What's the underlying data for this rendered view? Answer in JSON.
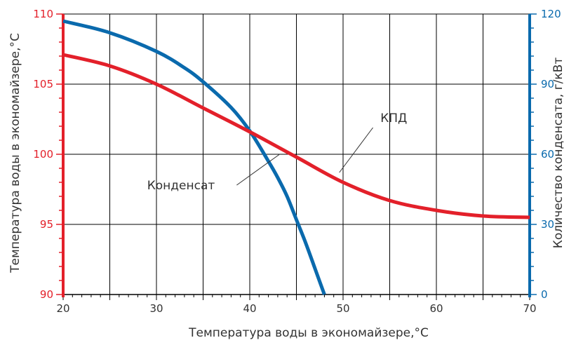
{
  "colors": {
    "left_axis": "#e3202a",
    "right_axis": "#0a6aad",
    "kpd_series": "#e3202a",
    "condensate_series": "#0a6aad",
    "grid": "#000000",
    "text": "#333333"
  },
  "chart_data": {
    "type": "line",
    "title": "",
    "xlabel": "Температура воды в экономайзере,°С",
    "ylabel_left": "Температура воды в экономайзере,°С",
    "ylabel_right": "Количество конденсата, г/кВт",
    "xlim": [
      20,
      70
    ],
    "ylim_left": [
      90,
      110
    ],
    "ylim_right": [
      0,
      120
    ],
    "x_ticks": [
      "20",
      "30",
      "40",
      "50",
      "60",
      "70"
    ],
    "y_left_ticks": [
      "90",
      "95",
      "100",
      "105",
      "110"
    ],
    "y_right_ticks": [
      "0",
      "30",
      "60",
      "90",
      "120"
    ],
    "grid": true,
    "series": [
      {
        "axis": "left",
        "x": [
          20,
          25,
          30,
          35,
          40,
          45,
          50,
          55,
          60,
          65,
          70
        ],
        "y": [
          107.1,
          106.3,
          105.0,
          103.3,
          101.6,
          99.8,
          98.0,
          96.7,
          96.0,
          95.6,
          95.5
        ]
      },
      {
        "axis": "right",
        "x": [
          20,
          25,
          30,
          33,
          35,
          38,
          40,
          42,
          43,
          44,
          45,
          46,
          47,
          48
        ],
        "y": [
          117,
          112,
          104,
          97,
          91,
          80,
          70,
          57,
          50,
          42,
          32,
          22,
          11,
          0
        ]
      }
    ],
    "annotations": [
      {
        "text": "КПД",
        "x": 54,
        "y_left": 102.3,
        "pointer_from": [
          53.2,
          101.9
        ],
        "pointer_to": [
          49.6,
          98.7
        ]
      },
      {
        "text": "Конденсат",
        "x": 29,
        "y_left": 97.5,
        "pointer_from": [
          38.6,
          97.8
        ],
        "pointer_to": [
          43.2,
          100.0
        ]
      }
    ]
  }
}
